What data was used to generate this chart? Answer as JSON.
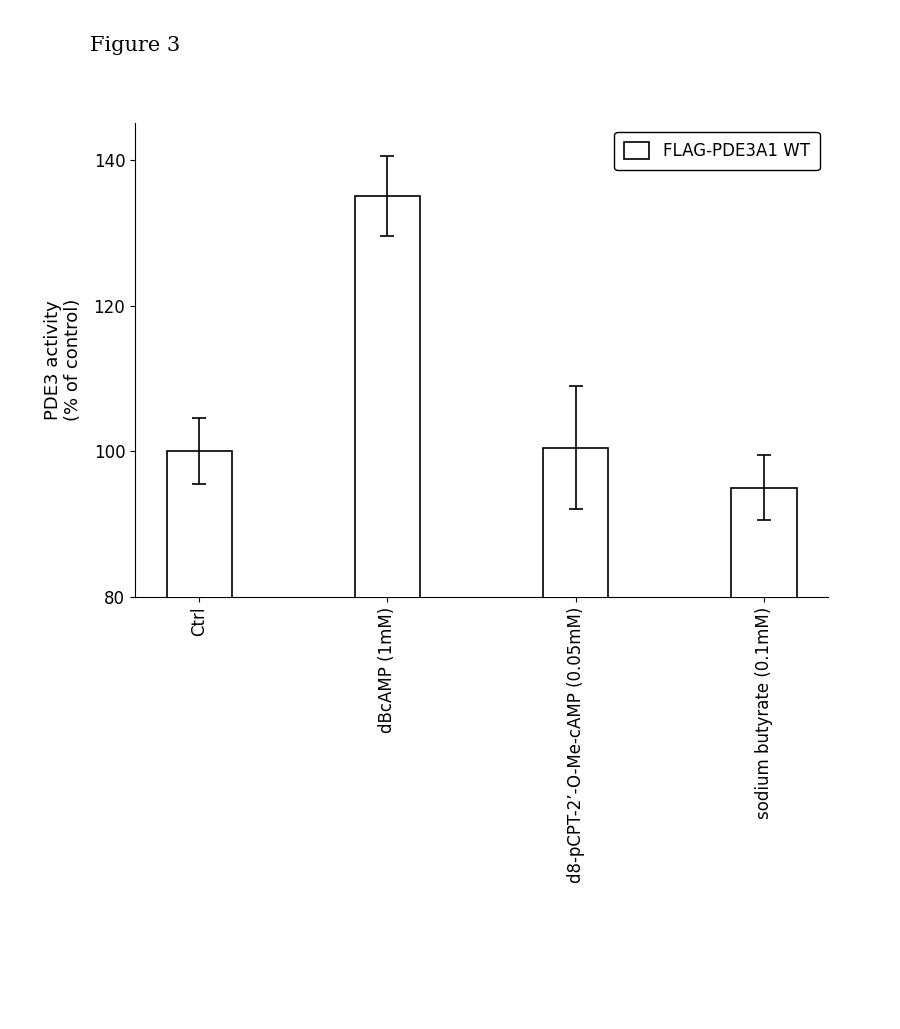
{
  "title": "Figure 3",
  "categories": [
    "Ctrl",
    "dBcAMP (1mM)",
    "d8-pCPT-2’-O-Me-cAMP (0.05mM)",
    "sodium butyrate (0.1mM)"
  ],
  "values": [
    100,
    135,
    100.5,
    95
  ],
  "errors": [
    4.5,
    5.5,
    8.5,
    4.5
  ],
  "bar_color": "#ffffff",
  "bar_edgecolor": "#000000",
  "ylabel": "PDE3 activity\n(% of control)",
  "ylim": [
    80,
    145
  ],
  "yticks": [
    80,
    100,
    120,
    140
  ],
  "legend_label": "FLAG-PDE3A1 WT",
  "bar_width": 0.35,
  "figsize": [
    9.0,
    10.29
  ],
  "dpi": 100,
  "title_fontsize": 15,
  "axis_fontsize": 13,
  "tick_fontsize": 12,
  "legend_fontsize": 12
}
